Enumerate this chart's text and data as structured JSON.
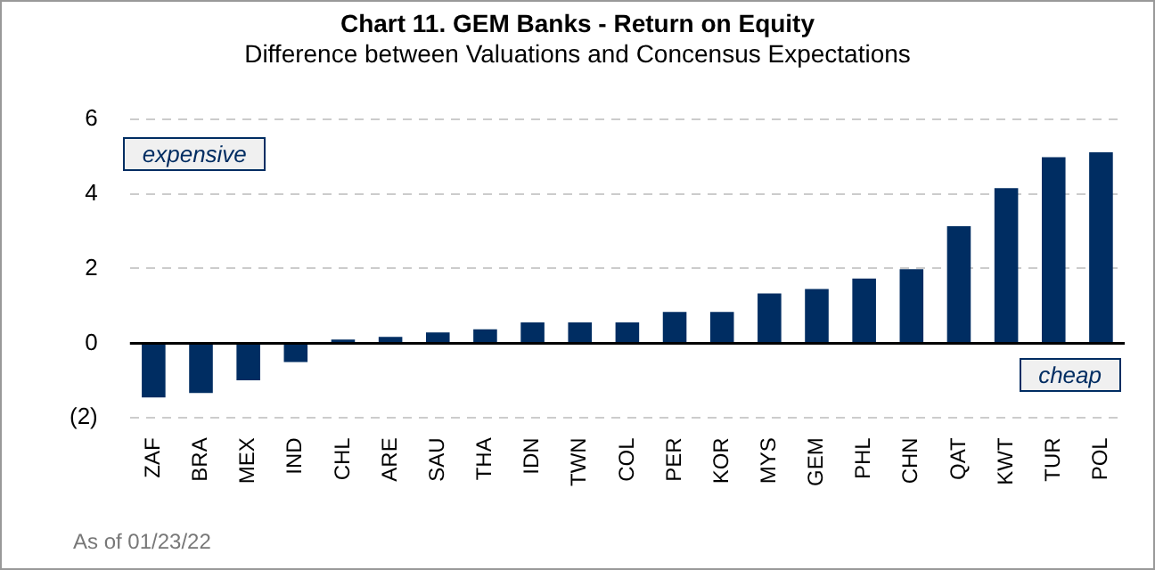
{
  "chart_data": {
    "type": "bar",
    "title": "Chart 11. GEM Banks - Return on Equity",
    "subtitle": "Difference between Valuations and Concensus Expectations",
    "categories": [
      "ZAF",
      "BRA",
      "MEX",
      "IND",
      "CHL",
      "ARE",
      "SAU",
      "THA",
      "IDN",
      "TWN",
      "COL",
      "PER",
      "KOR",
      "MYS",
      "GEM",
      "PHL",
      "CHN",
      "QAT",
      "KWT",
      "TUR",
      "POL"
    ],
    "values": [
      -1.45,
      -1.33,
      -0.99,
      -0.5,
      0.1,
      0.17,
      0.29,
      0.37,
      0.56,
      0.56,
      0.56,
      0.84,
      0.84,
      1.33,
      1.45,
      1.73,
      1.98,
      3.13,
      4.15,
      4.98,
      5.11
    ],
    "color": "#002d62",
    "ylim": [
      -2,
      6
    ],
    "yticks": [
      {
        "value": -2,
        "label": "(2)"
      },
      0,
      2,
      4,
      6
    ],
    "grid": "y",
    "annotations": [
      "expensive",
      "cheap",
      "As of 01/23/22"
    ]
  }
}
